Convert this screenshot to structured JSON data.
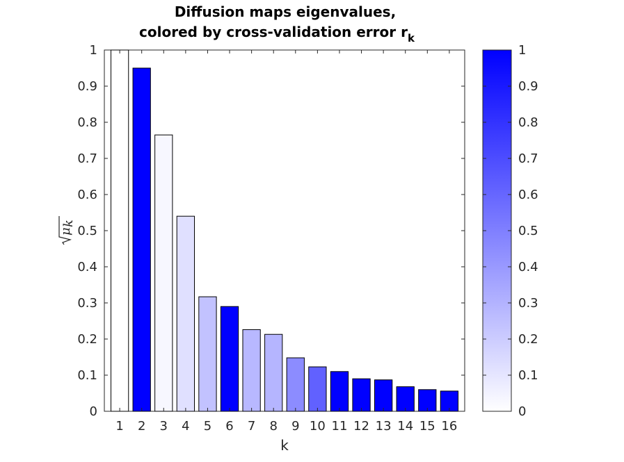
{
  "chart_data": {
    "type": "bar",
    "title_line1": "Diffusion maps eigenvalues,",
    "title_line2": "colored by cross-validation error r",
    "title_subscript": "k",
    "xlabel": "k",
    "ylabel_symbol": "μ",
    "ylabel_subscript": "k",
    "categories": [
      "1",
      "2",
      "3",
      "4",
      "5",
      "6",
      "7",
      "8",
      "9",
      "10",
      "11",
      "12",
      "13",
      "14",
      "15",
      "16"
    ],
    "values": [
      1.0,
      0.95,
      0.765,
      0.54,
      0.317,
      0.29,
      0.226,
      0.213,
      0.148,
      0.123,
      0.11,
      0.09,
      0.087,
      0.068,
      0.06,
      0.056
    ],
    "color_values": [
      0.0,
      1.0,
      0.03,
      0.12,
      0.24,
      1.0,
      0.28,
      0.29,
      0.45,
      0.62,
      1.0,
      1.0,
      1.0,
      1.0,
      1.0,
      1.0
    ],
    "ylim": [
      0,
      1
    ],
    "yticks": [
      "0",
      "0.1",
      "0.2",
      "0.3",
      "0.4",
      "0.5",
      "0.6",
      "0.7",
      "0.8",
      "0.9",
      "1"
    ],
    "colorbar": {
      "ticks": [
        "0",
        "0.1",
        "0.2",
        "0.3",
        "0.4",
        "0.5",
        "0.6",
        "0.7",
        "0.8",
        "0.9",
        "1"
      ],
      "range": [
        0,
        1
      ],
      "colormap_low": "#ffffff",
      "colormap_high": "#0000ff"
    },
    "grid": false
  }
}
